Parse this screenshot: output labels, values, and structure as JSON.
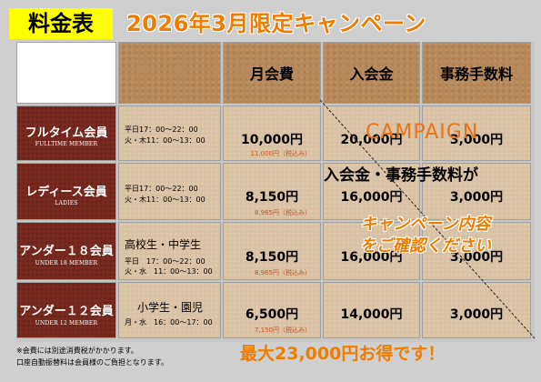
{
  "header": {
    "badge": "料金表",
    "campaign_title": "2026年3月限定キャンペーン"
  },
  "table": {
    "columns": [
      "月会費",
      "入会金",
      "事務手数料"
    ],
    "rows": [
      {
        "name": "フルタイム会員",
        "sub": "FULLTIME MEMBER",
        "hours": [
          "平日17：00～22：00",
          "火・木11：00～13：00"
        ],
        "monthly": "10,000円",
        "tax": "11,000円（税込み）",
        "entry": "20,000円",
        "fee": "3,000円"
      },
      {
        "name": "レディース会員",
        "sub": "LADIES",
        "hours": [
          "平日17：00～22：00",
          "火・木11：00～13：00"
        ],
        "monthly": "8,150円",
        "tax": "8,965円（税込み）",
        "entry": "16,000円",
        "fee": "3,000円"
      },
      {
        "name": "アンダー１８会員",
        "sub": "UNDER 18 MEMBER",
        "hours": [
          "高校生・中学生",
          "平日　17：00～22：00",
          "火・水　11：00～13：00"
        ],
        "monthly": "8,150円",
        "tax": "8,965円（税込み）",
        "entry": "16,000円",
        "fee": "3,000円"
      },
      {
        "name": "アンダー１２会員",
        "sub": "UNDER 12 MEMBER",
        "hours": [
          "小学生・園児",
          "月・水　16：00～17：00"
        ],
        "monthly": "6,500円",
        "tax": "7,150円（税込み）",
        "entry": "14,000円",
        "fee": "3,000円"
      }
    ]
  },
  "campaign": {
    "english": "CAMPAIGN",
    "line1": "入会金・事務手数料が",
    "line2": "キャンペーン内容",
    "line3": "をご確認ください"
  },
  "footer": {
    "note1": "※会費には別途消費税がかかります。",
    "note2": "口座自動振替料は会員様のご負担となります。",
    "savings": "最大23,000円お得です！"
  },
  "colors": {
    "accent": "#f07c00",
    "badge": "#ffff00",
    "plan_cell": "#7a2a1e",
    "kraft": "#b8895a"
  }
}
